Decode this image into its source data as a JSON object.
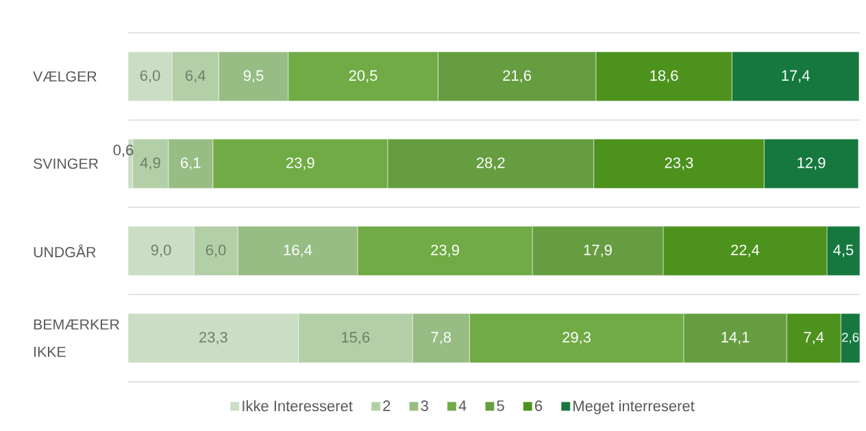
{
  "chart_data": {
    "type": "bar",
    "orientation": "horizontal",
    "stacked": true,
    "categories": [
      "VÆLGER",
      "SVINGER",
      "UNDGÅR",
      "BEMÆRKER IKKE"
    ],
    "xlim": [
      0,
      100.1
    ],
    "series": [
      {
        "name": "Ikke Interesseret",
        "color": "#cbddc5",
        "values": [
          6.0,
          0.6,
          9.0,
          23.3
        ],
        "value_labels": [
          "6,0",
          "0,6",
          "9,0",
          "23,3"
        ]
      },
      {
        "name": "2",
        "color": "#b3cfa7",
        "values": [
          6.4,
          4.9,
          6.0,
          15.6
        ],
        "value_labels": [
          "6,4",
          "4,9",
          "6,0",
          "15,6"
        ]
      },
      {
        "name": "3",
        "color": "#97bd85",
        "values": [
          9.5,
          6.1,
          16.4,
          7.8
        ],
        "value_labels": [
          "9,5",
          "6,1",
          "16,4",
          "7,8"
        ]
      },
      {
        "name": "4",
        "color": "#70ab46",
        "values": [
          20.5,
          23.9,
          23.9,
          29.3
        ],
        "value_labels": [
          "20,5",
          "23,9",
          "23,9",
          "29,3"
        ]
      },
      {
        "name": "5",
        "color": "#669d41",
        "values": [
          21.6,
          28.2,
          17.9,
          14.1
        ],
        "value_labels": [
          "21,6",
          "28,2",
          "17,9",
          "14,1"
        ]
      },
      {
        "name": "6",
        "color": "#4c921d",
        "values": [
          18.6,
          23.3,
          22.4,
          7.4
        ],
        "value_labels": [
          "18,6",
          "23,3",
          "22,4",
          "7,4"
        ]
      },
      {
        "name": "Meget interreseret",
        "color": "#16783f",
        "values": [
          17.4,
          12.9,
          4.5,
          2.6
        ],
        "value_labels": [
          "17,4",
          "12,9",
          "4,5",
          "2,6"
        ]
      }
    ],
    "grid": "y",
    "legend": "bottom",
    "tick_labels": "y"
  }
}
